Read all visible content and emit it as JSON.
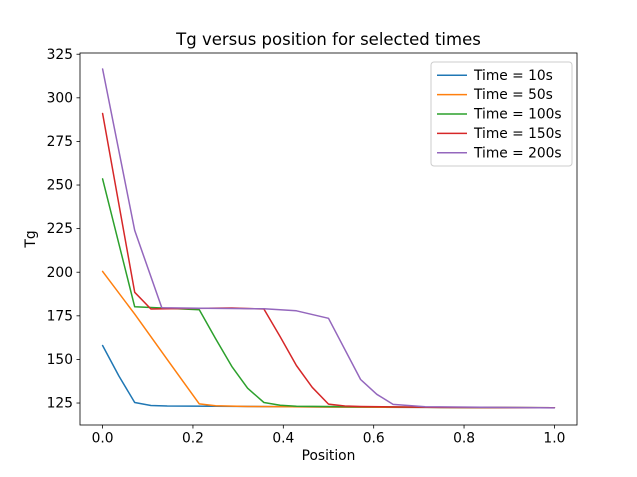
{
  "chart_data": {
    "type": "line",
    "title": "Tg versus position for selected times",
    "xlabel": "Position",
    "ylabel": "Tg",
    "xlim": [
      -0.05,
      1.05
    ],
    "ylim": [
      112.4,
      325.7
    ],
    "xticks": [
      0.0,
      0.2,
      0.4,
      0.6,
      0.8,
      1.0
    ],
    "xtick_labels": [
      "0.0",
      "0.2",
      "0.4",
      "0.6",
      "0.8",
      "1.0"
    ],
    "yticks": [
      125,
      150,
      175,
      200,
      225,
      250,
      275,
      300,
      325
    ],
    "ytick_labels": [
      "125",
      "150",
      "175",
      "200",
      "225",
      "250",
      "275",
      "300",
      "325"
    ],
    "grid": false,
    "legend_position": "upper right",
    "axis_color": "#000000",
    "legend_border_color": "#cccccc",
    "series": [
      {
        "name": "Time = 10s",
        "color": "#1f77b4",
        "points": [
          [
            0,
            158
          ],
          [
            0.036,
            140.5
          ],
          [
            0.071,
            125.3
          ],
          [
            0.107,
            123.6
          ],
          [
            0.143,
            123.3
          ],
          [
            0.25,
            123.1
          ],
          [
            0.5,
            122.7
          ],
          [
            0.714,
            122.5
          ],
          [
            1,
            122.3
          ]
        ]
      },
      {
        "name": "Time = 50s",
        "color": "#ff7f0e",
        "points": [
          [
            0,
            200.5
          ],
          [
            0.071,
            176
          ],
          [
            0.143,
            150
          ],
          [
            0.179,
            137
          ],
          [
            0.214,
            124.5
          ],
          [
            0.25,
            123.4
          ],
          [
            0.321,
            123
          ],
          [
            0.5,
            122.7
          ],
          [
            0.714,
            122.5
          ],
          [
            1,
            122.3
          ]
        ]
      },
      {
        "name": "Time = 100s",
        "color": "#2ca02c",
        "points": [
          [
            0,
            253.5
          ],
          [
            0.071,
            180.2
          ],
          [
            0.143,
            179.3
          ],
          [
            0.214,
            178.5
          ],
          [
            0.25,
            162
          ],
          [
            0.286,
            146
          ],
          [
            0.321,
            133.5
          ],
          [
            0.357,
            125.3
          ],
          [
            0.393,
            123.7
          ],
          [
            0.429,
            123.2
          ],
          [
            0.571,
            122.9
          ],
          [
            0.75,
            122.5
          ],
          [
            1,
            122.3
          ]
        ]
      },
      {
        "name": "Time = 150s",
        "color": "#d62728",
        "points": [
          [
            0,
            291
          ],
          [
            0.071,
            188.5
          ],
          [
            0.107,
            178.9
          ],
          [
            0.179,
            179.2
          ],
          [
            0.286,
            179.5
          ],
          [
            0.357,
            178.9
          ],
          [
            0.393,
            163
          ],
          [
            0.429,
            146.5
          ],
          [
            0.464,
            134
          ],
          [
            0.5,
            124.4
          ],
          [
            0.536,
            123.3
          ],
          [
            0.571,
            123
          ],
          [
            0.75,
            122.5
          ],
          [
            1,
            122.3
          ]
        ]
      },
      {
        "name": "Time = 200s",
        "color": "#9467bd",
        "points": [
          [
            0,
            316.5
          ],
          [
            0.071,
            224
          ],
          [
            0.131,
            179.6
          ],
          [
            0.214,
            179.4
          ],
          [
            0.286,
            179.2
          ],
          [
            0.357,
            179
          ],
          [
            0.429,
            177.9
          ],
          [
            0.5,
            173.6
          ],
          [
            0.571,
            138.5
          ],
          [
            0.607,
            130
          ],
          [
            0.643,
            124.2
          ],
          [
            0.714,
            122.9
          ],
          [
            1,
            122.2
          ]
        ]
      }
    ]
  }
}
